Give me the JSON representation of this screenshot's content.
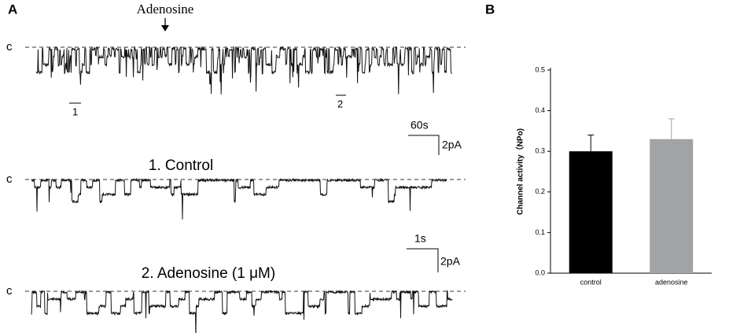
{
  "panel_a": {
    "panel_label": "A",
    "arrow_label": "Adenosine",
    "trace_labels": [
      "c",
      "c",
      "c"
    ],
    "segment_labels": [
      "1",
      "2"
    ],
    "scale_bar_1": {
      "time": "60s",
      "current": "2pA"
    },
    "scale_bar_2": {
      "time": "1s",
      "current": "2pA"
    },
    "titles": [
      "1. Control",
      "2. Adenosine (1 μM)"
    ]
  },
  "chart_data": {
    "type": "bar",
    "panel_label": "B",
    "y_label": "Channel activity（NPo)",
    "categories": [
      "control",
      "adenosine"
    ],
    "values": [
      0.3,
      0.33
    ],
    "errors": [
      0.04,
      0.05
    ],
    "colors": [
      "#000000",
      "#a0a4a4"
    ],
    "ylim": [
      0,
      0.5
    ],
    "yticks": [
      {
        "value": 0,
        "label": "0.0"
      },
      0.1,
      0.2,
      0.3,
      0.4,
      0.5
    ]
  }
}
